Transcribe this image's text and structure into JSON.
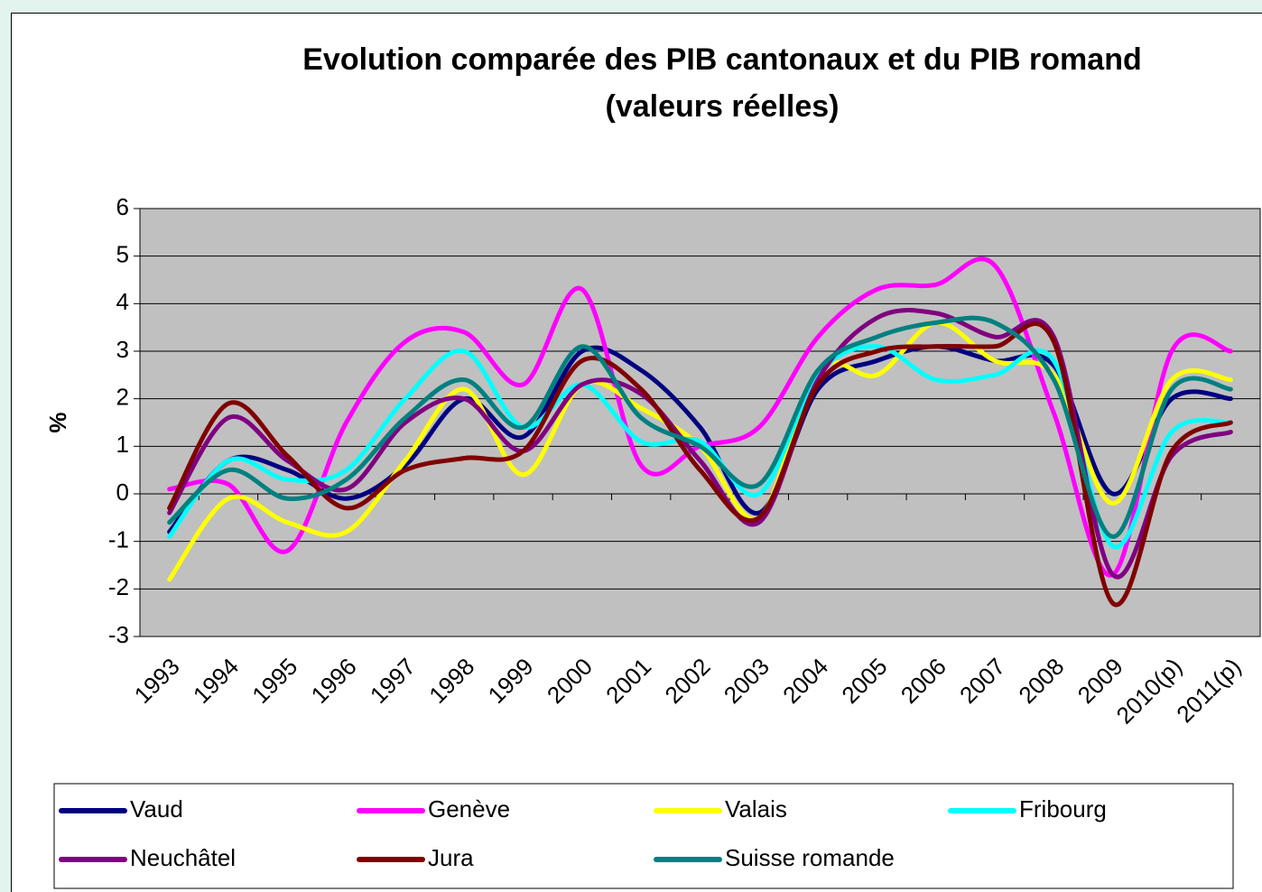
{
  "chart_data": {
    "type": "line",
    "title": "Evolution comparée des PIB cantonaux et du PIB romand (valeurs réelles)",
    "y_label": "%",
    "categories": [
      "1993",
      "1994",
      "1995",
      "1996",
      "1997",
      "1998",
      "1999",
      "2000",
      "2001",
      "2002",
      "2003",
      "2004",
      "2005",
      "2006",
      "2007",
      "2008",
      "2009",
      "2010(p)",
      "2011(p)"
    ],
    "series": [
      {
        "name": "Vaud",
        "color": "#000080",
        "values": [
          -0.8,
          0.7,
          0.5,
          -0.1,
          0.6,
          2.0,
          1.2,
          3.0,
          2.6,
          1.4,
          -0.4,
          2.2,
          2.8,
          3.1,
          2.8,
          2.7,
          0.0,
          2.0,
          2.0
        ]
      },
      {
        "name": "Genève",
        "color": "#ff00ff",
        "values": [
          0.1,
          0.2,
          -1.2,
          1.5,
          3.2,
          3.4,
          2.3,
          4.3,
          0.6,
          1.0,
          1.4,
          3.3,
          4.3,
          4.4,
          4.8,
          1.7,
          -1.7,
          3.0,
          3.0
        ]
      },
      {
        "name": "Valais",
        "color": "#ffff00",
        "values": [
          -1.8,
          -0.1,
          -0.6,
          -0.8,
          0.7,
          2.2,
          0.4,
          2.3,
          1.8,
          1.0,
          -0.5,
          2.6,
          2.5,
          3.6,
          2.8,
          2.5,
          -0.2,
          2.4,
          2.4
        ]
      },
      {
        "name": "Fribourg",
        "color": "#00ffff",
        "values": [
          -0.9,
          0.7,
          0.3,
          0.5,
          2.0,
          3.0,
          1.4,
          2.3,
          1.1,
          1.1,
          0.0,
          2.5,
          3.1,
          2.4,
          2.5,
          2.8,
          -1.1,
          1.3,
          1.5
        ]
      },
      {
        "name": "Neuchâtel",
        "color": "#800080",
        "values": [
          -0.4,
          1.6,
          0.7,
          0.1,
          1.5,
          2.0,
          0.9,
          2.3,
          2.1,
          0.7,
          -0.6,
          2.4,
          3.7,
          3.8,
          3.3,
          3.3,
          -1.7,
          0.8,
          1.3
        ]
      },
      {
        "name": "Jura",
        "color": "#800000",
        "values": [
          -0.3,
          1.9,
          0.8,
          -0.3,
          0.5,
          0.75,
          0.9,
          2.8,
          2.2,
          0.5,
          -0.5,
          2.3,
          3.0,
          3.1,
          3.1,
          3.2,
          -2.3,
          0.9,
          1.5
        ]
      },
      {
        "name": "Suisse romande",
        "color": "#008080",
        "values": [
          -0.6,
          0.5,
          -0.1,
          0.3,
          1.6,
          2.4,
          1.4,
          3.1,
          1.6,
          1.0,
          0.2,
          2.6,
          3.3,
          3.6,
          3.6,
          2.4,
          -0.9,
          2.2,
          2.2
        ]
      }
    ],
    "ylim": [
      -3,
      6
    ],
    "yticks": [
      -3,
      -2,
      -1,
      0,
      1,
      2,
      3,
      4,
      5,
      6
    ],
    "grid": true,
    "plot_background": "#c0c0c0",
    "legend": "bottom"
  }
}
